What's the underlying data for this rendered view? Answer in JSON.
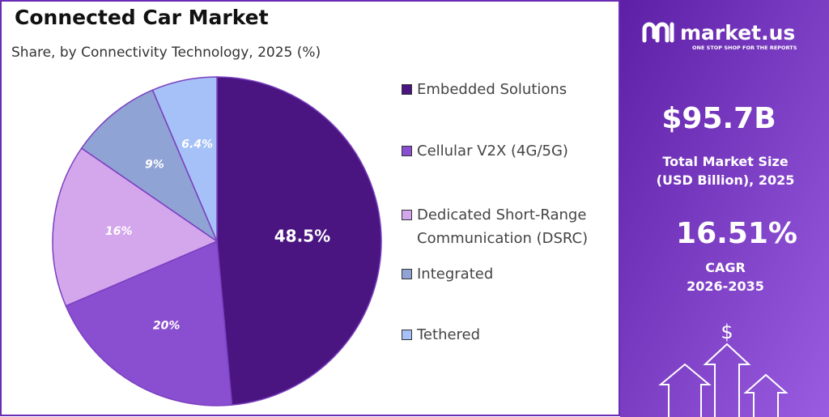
{
  "chart_data": {
    "type": "pie",
    "title": "Connected Car Market",
    "subtitle": "Share, by Connectivity Technology, 2025 (%)",
    "categories": [
      "Embedded Solutions",
      "Cellular V2X (4G/5G)",
      "Dedicated Short-Range Communication (DSRC)",
      "Integrated",
      "Tethered"
    ],
    "values": [
      48.5,
      20,
      16,
      9,
      6.4
    ],
    "value_labels": [
      "48.5%",
      "20%",
      "16%",
      "9%",
      "6.4%"
    ],
    "colors": [
      "#4a1580",
      "#8a4fd0",
      "#d4a6ec",
      "#8fa3d4",
      "#a5c1f7"
    ],
    "legend": "right"
  },
  "panel": {
    "brand": "market.us",
    "tagline": "ONE STOP SHOP FOR THE REPORTS",
    "market_size": "$95.7B",
    "market_size_label": [
      "Total Market Size",
      "(USD Billion), 2025"
    ],
    "cagr": "16.51%",
    "cagr_label": [
      "CAGR",
      "2026-2035"
    ],
    "icon": "$"
  }
}
